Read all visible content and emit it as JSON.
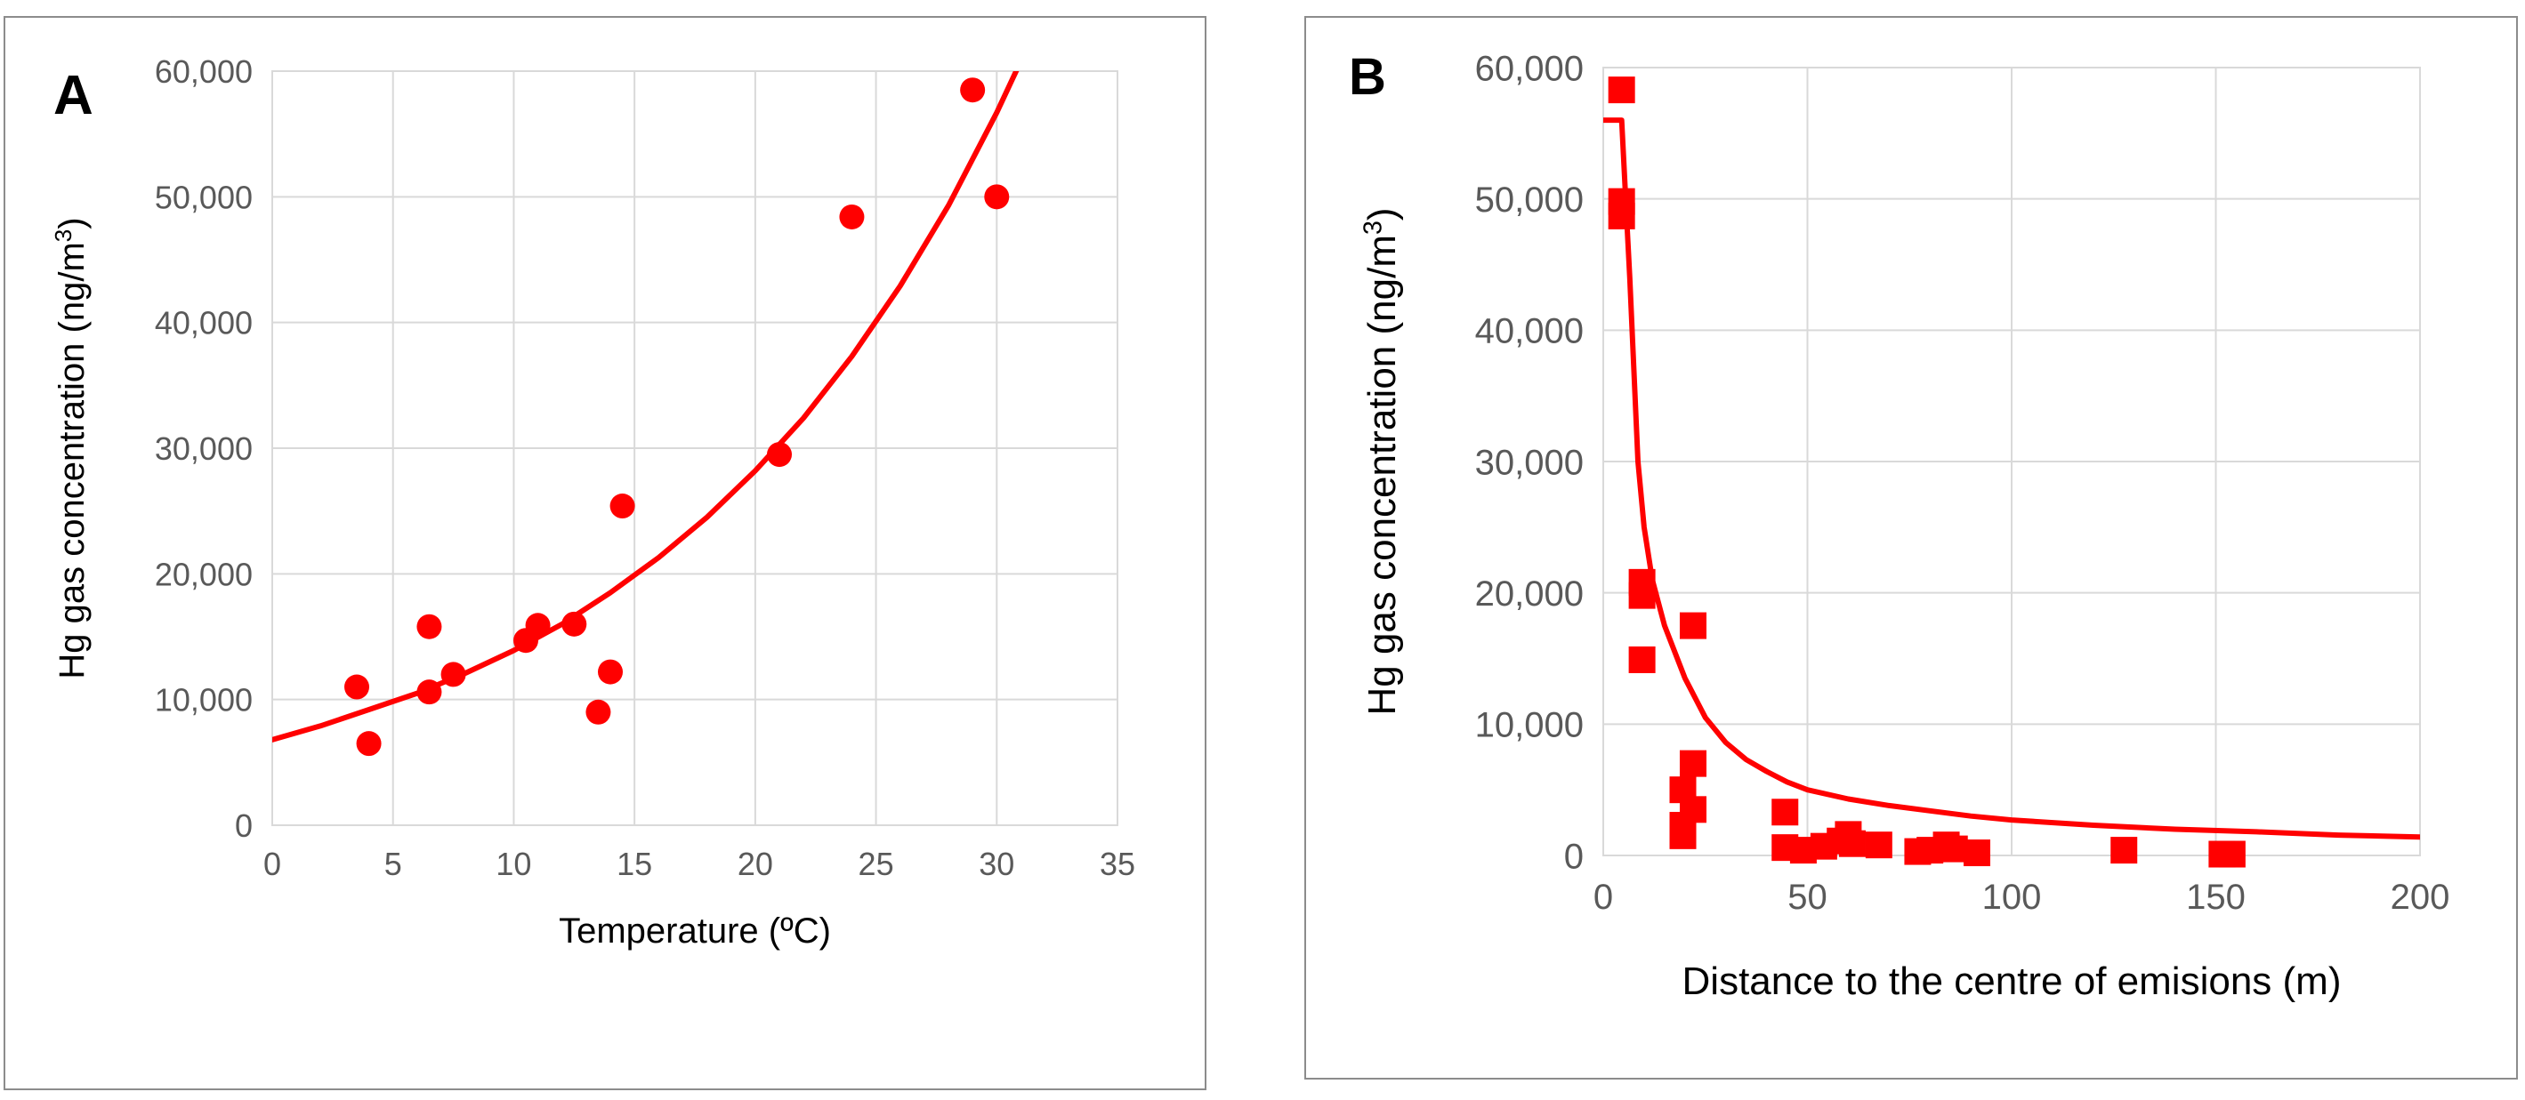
{
  "colors": {
    "series": "#ff0000",
    "grid": "#d9d9d9",
    "tick_text": "#595959"
  },
  "chart_data": [
    {
      "type": "scatter",
      "panel_label": "A",
      "xlabel": "Temperature (ºC)",
      "ylabel_text": "Hg gas concentration (ng/m",
      "ylabel_sup": "3",
      "ylabel_close": ")",
      "xlim": [
        0,
        35
      ],
      "ylim": [
        0,
        60000
      ],
      "x_ticks": [
        0,
        5,
        10,
        15,
        20,
        25,
        30,
        35
      ],
      "y_ticks": [
        0,
        10000,
        20000,
        30000,
        40000,
        50000,
        60000
      ],
      "x_tick_labels": [
        "0",
        "5",
        "10",
        "15",
        "20",
        "25",
        "30",
        "35"
      ],
      "y_tick_labels": [
        "0",
        "10,000",
        "20,000",
        "30,000",
        "40,000",
        "50,000",
        "60,000"
      ],
      "grid": true,
      "legend": "none",
      "marker": "circle",
      "points": [
        {
          "x": 3.5,
          "y": 11000
        },
        {
          "x": 4.0,
          "y": 6500
        },
        {
          "x": 6.5,
          "y": 15800
        },
        {
          "x": 6.5,
          "y": 10600
        },
        {
          "x": 7.5,
          "y": 12000
        },
        {
          "x": 10.5,
          "y": 14700
        },
        {
          "x": 11.0,
          "y": 15900
        },
        {
          "x": 12.5,
          "y": 16000
        },
        {
          "x": 13.5,
          "y": 9000
        },
        {
          "x": 14.0,
          "y": 12200
        },
        {
          "x": 14.5,
          "y": 25400
        },
        {
          "x": 21.0,
          "y": 29500
        },
        {
          "x": 24.0,
          "y": 48400
        },
        {
          "x": 29.0,
          "y": 58500
        },
        {
          "x": 30.0,
          "y": 50000
        }
      ],
      "trendline": [
        {
          "x": 0,
          "y": 6800
        },
        {
          "x": 2,
          "y": 7900
        },
        {
          "x": 4,
          "y": 9200
        },
        {
          "x": 6,
          "y": 10500
        },
        {
          "x": 8,
          "y": 12100
        },
        {
          "x": 10,
          "y": 13900
        },
        {
          "x": 12,
          "y": 16000
        },
        {
          "x": 14,
          "y": 18500
        },
        {
          "x": 16,
          "y": 21300
        },
        {
          "x": 18,
          "y": 24500
        },
        {
          "x": 20,
          "y": 28200
        },
        {
          "x": 22,
          "y": 32400
        },
        {
          "x": 24,
          "y": 37300
        },
        {
          "x": 26,
          "y": 42900
        },
        {
          "x": 28,
          "y": 49300
        },
        {
          "x": 30,
          "y": 56700
        },
        {
          "x": 31,
          "y": 60800
        }
      ]
    },
    {
      "type": "scatter",
      "panel_label": "B",
      "xlabel": "Distance to the centre of emisions (m)",
      "ylabel_text": "Hg gas concentration (ng/m",
      "ylabel_sup": "3",
      "ylabel_close": ")",
      "xlim": [
        0,
        200
      ],
      "ylim": [
        0,
        60000
      ],
      "x_ticks": [
        0,
        50,
        100,
        150,
        200
      ],
      "y_ticks": [
        0,
        10000,
        20000,
        30000,
        40000,
        50000,
        60000
      ],
      "x_tick_labels": [
        "0",
        "50",
        "100",
        "150",
        "200"
      ],
      "y_tick_labels": [
        "0",
        "10,000",
        "20,000",
        "30,000",
        "40,000",
        "50,000",
        "60,000"
      ],
      "grid": true,
      "legend": "none",
      "marker": "square",
      "points": [
        {
          "x": 4.5,
          "y": 58300
        },
        {
          "x": 4.5,
          "y": 49800
        },
        {
          "x": 4.5,
          "y": 48700
        },
        {
          "x": 9.5,
          "y": 20800
        },
        {
          "x": 9.5,
          "y": 19800
        },
        {
          "x": 9.5,
          "y": 14900
        },
        {
          "x": 22,
          "y": 17500
        },
        {
          "x": 22,
          "y": 7000
        },
        {
          "x": 19.5,
          "y": 5000
        },
        {
          "x": 22,
          "y": 3500
        },
        {
          "x": 19.5,
          "y": 2300
        },
        {
          "x": 19.5,
          "y": 1500
        },
        {
          "x": 44.5,
          "y": 3300
        },
        {
          "x": 44.5,
          "y": 600
        },
        {
          "x": 49,
          "y": 400
        },
        {
          "x": 54,
          "y": 700
        },
        {
          "x": 58,
          "y": 1100
        },
        {
          "x": 60,
          "y": 1600
        },
        {
          "x": 61,
          "y": 900
        },
        {
          "x": 67.5,
          "y": 800
        },
        {
          "x": 77,
          "y": 300
        },
        {
          "x": 80,
          "y": 400
        },
        {
          "x": 84,
          "y": 800
        },
        {
          "x": 86,
          "y": 500
        },
        {
          "x": 91.5,
          "y": 200
        },
        {
          "x": 127.5,
          "y": 400
        },
        {
          "x": 151.5,
          "y": 100
        },
        {
          "x": 154,
          "y": 100
        }
      ],
      "trendline": [
        {
          "x": 0,
          "y": 56000
        },
        {
          "x": 4.5,
          "y": 56000
        },
        {
          "x": 5.5,
          "y": 50000
        },
        {
          "x": 6.5,
          "y": 44000
        },
        {
          "x": 7.5,
          "y": 37000
        },
        {
          "x": 8.5,
          "y": 30000
        },
        {
          "x": 10,
          "y": 25000
        },
        {
          "x": 12,
          "y": 21000
        },
        {
          "x": 15,
          "y": 17500
        },
        {
          "x": 20,
          "y": 13500
        },
        {
          "x": 25,
          "y": 10500
        },
        {
          "x": 30,
          "y": 8600
        },
        {
          "x": 35,
          "y": 7300
        },
        {
          "x": 40,
          "y": 6400
        },
        {
          "x": 45,
          "y": 5600
        },
        {
          "x": 50,
          "y": 5000
        },
        {
          "x": 60,
          "y": 4300
        },
        {
          "x": 70,
          "y": 3800
        },
        {
          "x": 80,
          "y": 3400
        },
        {
          "x": 90,
          "y": 3000
        },
        {
          "x": 100,
          "y": 2700
        },
        {
          "x": 120,
          "y": 2300
        },
        {
          "x": 140,
          "y": 2000
        },
        {
          "x": 160,
          "y": 1800
        },
        {
          "x": 180,
          "y": 1550
        },
        {
          "x": 200,
          "y": 1400
        }
      ]
    }
  ]
}
